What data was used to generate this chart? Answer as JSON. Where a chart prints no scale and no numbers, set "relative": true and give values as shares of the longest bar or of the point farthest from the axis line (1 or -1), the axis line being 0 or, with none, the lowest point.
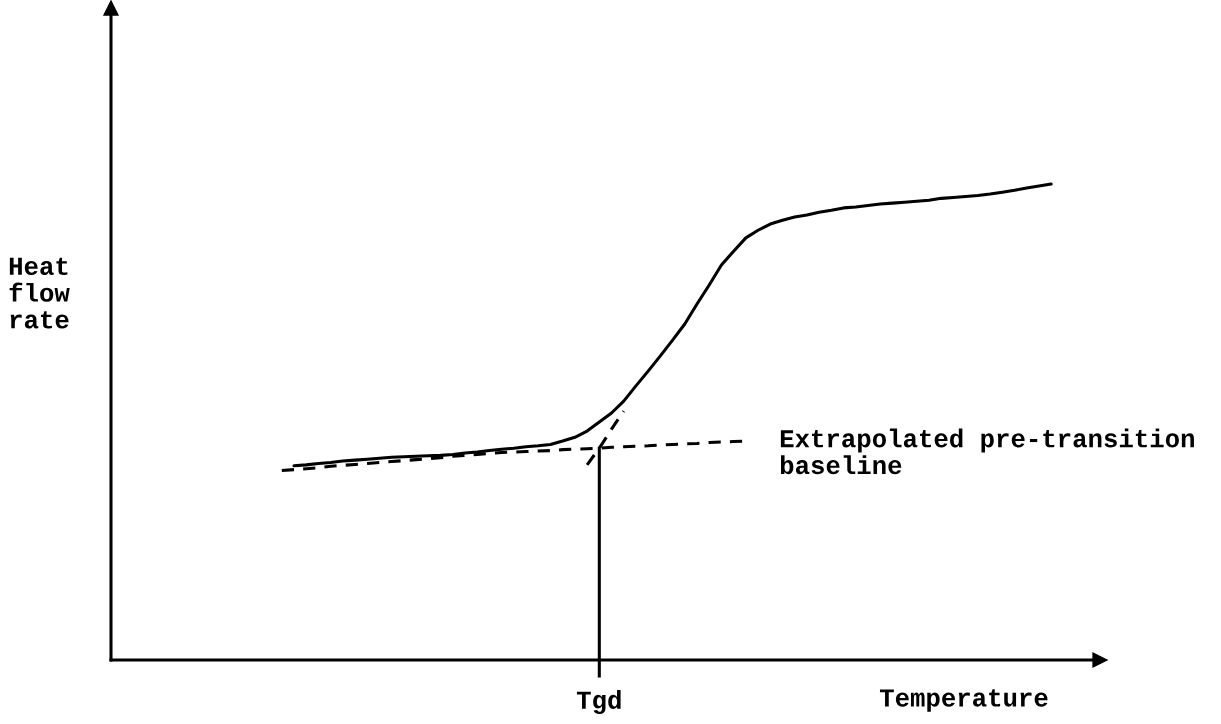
{
  "chart_data": {
    "type": "line",
    "relative": true,
    "xlabel": "Temperature",
    "annotations": [
      "Tgd",
      "Heat\nflow\nrate"
    ],
    "categories": [
      null,
      null,
      null,
      null,
      null,
      null,
      null,
      null,
      null,
      null,
      null,
      null,
      null,
      null,
      null,
      null,
      null,
      null,
      null,
      null,
      null,
      null,
      null,
      null,
      null,
      null,
      null,
      null,
      null,
      null,
      null,
      null,
      null,
      null,
      null,
      null,
      null,
      null,
      null,
      null,
      null,
      null,
      null,
      null,
      null,
      null,
      null,
      null,
      null,
      null,
      null,
      null,
      null,
      null,
      null,
      null,
      null,
      null,
      null,
      null,
      null,
      null,
      null,
      null
    ],
    "series": [
      {
        "color": "#000000",
        "line_style": "solid",
        "values": [
          null,
          0.408,
          0.41,
          0.413,
          0.415,
          0.418,
          0.42,
          0.422,
          0.424,
          0.426,
          0.427,
          0.428,
          0.429,
          0.43,
          0.432,
          0.435,
          0.437,
          0.44,
          0.443,
          0.445,
          0.448,
          0.45,
          0.453,
          0.46,
          0.468,
          0.481,
          0.5,
          0.519,
          0.544,
          0.576,
          0.607,
          0.639,
          0.672,
          0.706,
          0.748,
          0.788,
          0.83,
          0.859,
          0.887,
          0.903,
          0.916,
          0.924,
          0.931,
          0.935,
          0.941,
          0.945,
          0.95,
          0.952,
          0.955,
          0.958,
          0.96,
          0.962,
          0.964,
          0.966,
          0.97,
          0.972,
          0.974,
          0.976,
          0.979,
          0.983,
          0.987,
          0.992,
          0.996,
          1
        ]
      },
      {
        "name": "Extrapolated pre-transition\nbaseline",
        "color": "#000000",
        "line_style": "dashed",
        "values": [
          0.398,
          0.4,
          0.402,
          0.404,
          0.407,
          0.409,
          0.411,
          0.413,
          0.415,
          0.417,
          0.419,
          0.421,
          0.423,
          0.425,
          0.428,
          0.43,
          0.432,
          0.434,
          0.436,
          0.437,
          0.438,
          0.439,
          0.44,
          0.442,
          0.443,
          0.444,
          0.445,
          0.447,
          0.448,
          0.449,
          0.45,
          0.452,
          0.453,
          0.454,
          0.455,
          0.457,
          0.458,
          0.459,
          0.46,
          null,
          null,
          null,
          null,
          null,
          null,
          null,
          null,
          null,
          null,
          null,
          null,
          null,
          null,
          null,
          null,
          null,
          null,
          null,
          null,
          null,
          null,
          null,
          null,
          null
        ]
      },
      {
        "color": "#000000",
        "line_style": "dashed",
        "values": [
          null,
          null,
          null,
          null,
          null,
          null,
          null,
          null,
          null,
          null,
          null,
          null,
          null,
          null,
          null,
          null,
          null,
          null,
          null,
          null,
          null,
          null,
          null,
          null,
          null,
          0.41,
          0.445,
          0.485,
          0.523,
          null,
          null,
          null,
          null,
          null,
          null,
          null,
          null,
          null,
          null,
          null,
          null,
          null,
          null,
          null,
          null,
          null,
          null,
          null,
          null,
          null,
          null,
          null,
          null,
          null,
          null,
          null,
          null,
          null,
          null,
          null,
          null,
          null,
          null,
          null
        ]
      }
    ]
  }
}
